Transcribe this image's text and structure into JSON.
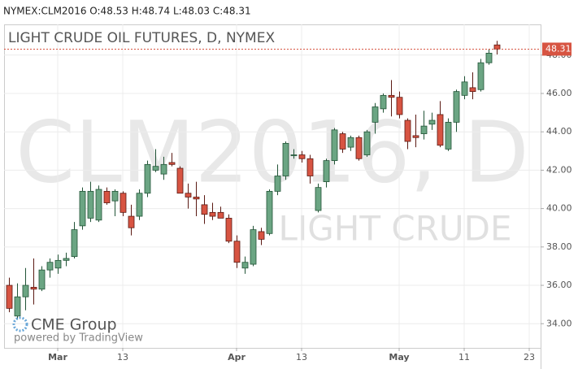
{
  "header": "NYMEX:CLM2016 O:48.53 H:48.74 L:48.03 C:48.31",
  "chart_data": {
    "type": "candlestick",
    "title": "LIGHT CRUDE OIL FUTURES, D, NYMEX",
    "watermark": "CLM2016, D",
    "watermark_subtitle": "LIGHT CRUDE",
    "categories": [
      null,
      null,
      null,
      null,
      null,
      null,
      "Mar",
      null,
      null,
      null,
      null,
      null,
      null,
      null,
      "13",
      null,
      null,
      null,
      null,
      null,
      null,
      null,
      null,
      null,
      null,
      null,
      null,
      null,
      "Apr",
      null,
      null,
      null,
      null,
      null,
      null,
      null,
      "13",
      null,
      null,
      null,
      null,
      null,
      null,
      null,
      null,
      null,
      null,
      null,
      "May",
      null,
      null,
      null,
      null,
      null,
      null,
      null,
      "11",
      null,
      null,
      null,
      null,
      null,
      null,
      null,
      "23"
    ],
    "open": [
      36.0,
      34.4,
      35.4,
      35.9,
      35.8,
      36.8,
      36.9,
      37.3,
      37.5,
      39.1,
      39.5,
      39.4,
      40.9,
      40.4,
      40.8,
      39.6,
      39.6,
      40.8,
      42.0,
      41.8,
      42.4,
      42.1,
      40.8,
      40.6,
      40.2,
      39.8,
      39.8,
      39.5,
      38.3,
      36.9,
      37.1,
      38.8,
      38.7,
      40.9,
      41.7,
      42.8,
      42.8,
      42.6,
      39.9,
      41.4,
      42.5,
      43.9,
      43.2,
      43.7,
      42.8,
      44.5,
      45.2,
      45.9,
      45.8,
      44.6,
      43.8,
      43.9,
      44.4,
      44.9,
      43.1,
      44.5,
      45.9,
      46.3,
      46.2,
      47.6,
      48.53,
      null,
      null,
      null,
      null
    ],
    "high": [
      36.4,
      36.1,
      36.9,
      37.4,
      37.0,
      37.4,
      37.6,
      37.7,
      39.3,
      41.1,
      41.4,
      41.2,
      41.1,
      41.0,
      40.9,
      40.2,
      41.0,
      42.5,
      43.1,
      42.7,
      42.9,
      42.2,
      41.3,
      41.4,
      40.7,
      40.3,
      40.1,
      39.7,
      38.6,
      37.5,
      39.1,
      39.0,
      41.0,
      42.3,
      43.5,
      43.1,
      43.0,
      42.8,
      41.3,
      42.6,
      44.2,
      44.0,
      43.8,
      43.8,
      44.1,
      45.5,
      46.0,
      46.7,
      46.1,
      44.7,
      44.9,
      45.1,
      45.0,
      45.6,
      44.7,
      46.2,
      46.9,
      47.1,
      47.8,
      48.3,
      48.74,
      null,
      null,
      null,
      null
    ],
    "low": [
      34.6,
      34.2,
      34.7,
      35.0,
      35.7,
      36.4,
      36.6,
      37.0,
      37.4,
      38.9,
      39.3,
      39.3,
      40.2,
      39.6,
      39.6,
      38.6,
      39.4,
      40.6,
      41.9,
      41.5,
      42.2,
      40.8,
      40.0,
      39.6,
      39.2,
      39.4,
      39.5,
      38.2,
      36.9,
      36.6,
      37.0,
      38.1,
      38.6,
      40.7,
      41.5,
      42.6,
      42.4,
      41.3,
      39.8,
      41.1,
      42.3,
      42.9,
      43.0,
      42.5,
      42.7,
      43.9,
      45.0,
      44.8,
      44.7,
      43.1,
      43.2,
      43.6,
      44.1,
      43.2,
      43.0,
      44.0,
      45.7,
      45.7,
      46.1,
      47.5,
      48.03,
      null,
      null,
      null,
      null
    ],
    "close": [
      34.8,
      35.4,
      36.0,
      35.8,
      36.8,
      37.2,
      37.3,
      37.4,
      38.9,
      40.9,
      40.9,
      41.0,
      40.3,
      40.9,
      39.8,
      39.0,
      40.8,
      42.3,
      42.2,
      42.3,
      42.3,
      40.8,
      40.6,
      40.5,
      39.7,
      39.6,
      39.5,
      38.3,
      37.2,
      37.2,
      38.9,
      38.4,
      40.9,
      41.7,
      43.4,
      42.8,
      42.6,
      41.7,
      41.1,
      42.5,
      44.1,
      43.1,
      43.7,
      42.6,
      44.0,
      45.3,
      45.9,
      45.8,
      44.9,
      43.5,
      43.7,
      44.3,
      44.6,
      43.3,
      44.5,
      46.1,
      46.6,
      46.1,
      47.6,
      48.1,
      48.31,
      null,
      null,
      null,
      null
    ],
    "up_color": "#6ba583",
    "down_color": "#d75442",
    "ylim": [
      32.74,
      49.6
    ],
    "yticks": [
      {
        "value": 34,
        "label": "34.00"
      },
      {
        "value": 36,
        "label": "36.00"
      },
      {
        "value": 38,
        "label": "38.00"
      },
      {
        "value": 40,
        "label": "40.00"
      },
      {
        "value": 42,
        "label": "42.00"
      },
      {
        "value": 44,
        "label": "44.00"
      },
      {
        "value": 46,
        "label": "46.00"
      },
      {
        "value": 48,
        "label": "48.00"
      }
    ],
    "last_price": 48.31,
    "grid": true
  },
  "branding": {
    "logo": "CME Group",
    "credit": "powered by TradingView"
  }
}
